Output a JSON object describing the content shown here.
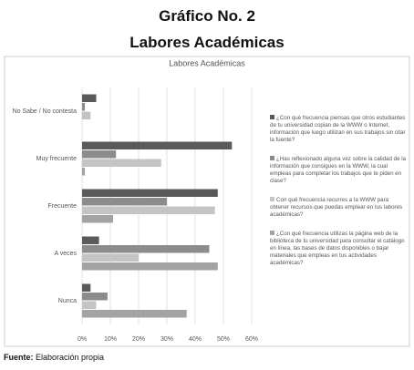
{
  "header": {
    "title": "Gráfico No. 2",
    "subtitle": "Labores Académicas"
  },
  "chart_data": {
    "type": "hbar",
    "title": "Labores Académicas",
    "categories": [
      "No Sabe / No contesta",
      "Muy frecuente",
      "Frecuente",
      "A veces",
      "Nunca"
    ],
    "series": [
      {
        "name": "¿Con qué frecuencia piensas que otros estudiantes de tu universidad copian de la WWW o Internet, información que luego utilizan en sus trabajos sin citar la fuente?",
        "color": "#5a5a5a",
        "values": [
          5,
          53,
          48,
          6,
          3
        ]
      },
      {
        "name": "¿Has reflexionado alguna vez sobre la calidad de la información que consigues en la WWW, la cual empleas para completar los trabajos que te piden en clase?",
        "color": "#8c8c8c",
        "values": [
          1,
          12,
          30,
          45,
          9
        ]
      },
      {
        "name": "Con qué frecuencia recurres a la WWW para obtener recursos que puedas emplear en tus labores académicas?",
        "color": "#c4c4c4",
        "values": [
          3,
          28,
          47,
          20,
          5
        ]
      },
      {
        "name": "¿Con qué frecuencia utilizas la página web de la biblioteca de tu universidad para consultar el catálogo en línea, las bases de datos disponibles o bajar materiales que empleas en tus actividades académicas?",
        "color": "#a3a3a3",
        "values": [
          0,
          1,
          11,
          48,
          37
        ]
      }
    ],
    "xlim": [
      0,
      60
    ],
    "xticks": [
      {
        "value": 0,
        "label": "0%"
      },
      {
        "value": 10,
        "label": "10%"
      },
      {
        "value": 20,
        "label": "20%"
      },
      {
        "value": 30,
        "label": "30%"
      },
      {
        "value": 40,
        "label": "40%"
      },
      {
        "value": 50,
        "label": "50%"
      },
      {
        "value": 60,
        "label": "60%"
      }
    ],
    "grid": true,
    "legend": "right"
  },
  "footer": {
    "label": "Fuente:",
    "text": "Elaboración propia"
  }
}
